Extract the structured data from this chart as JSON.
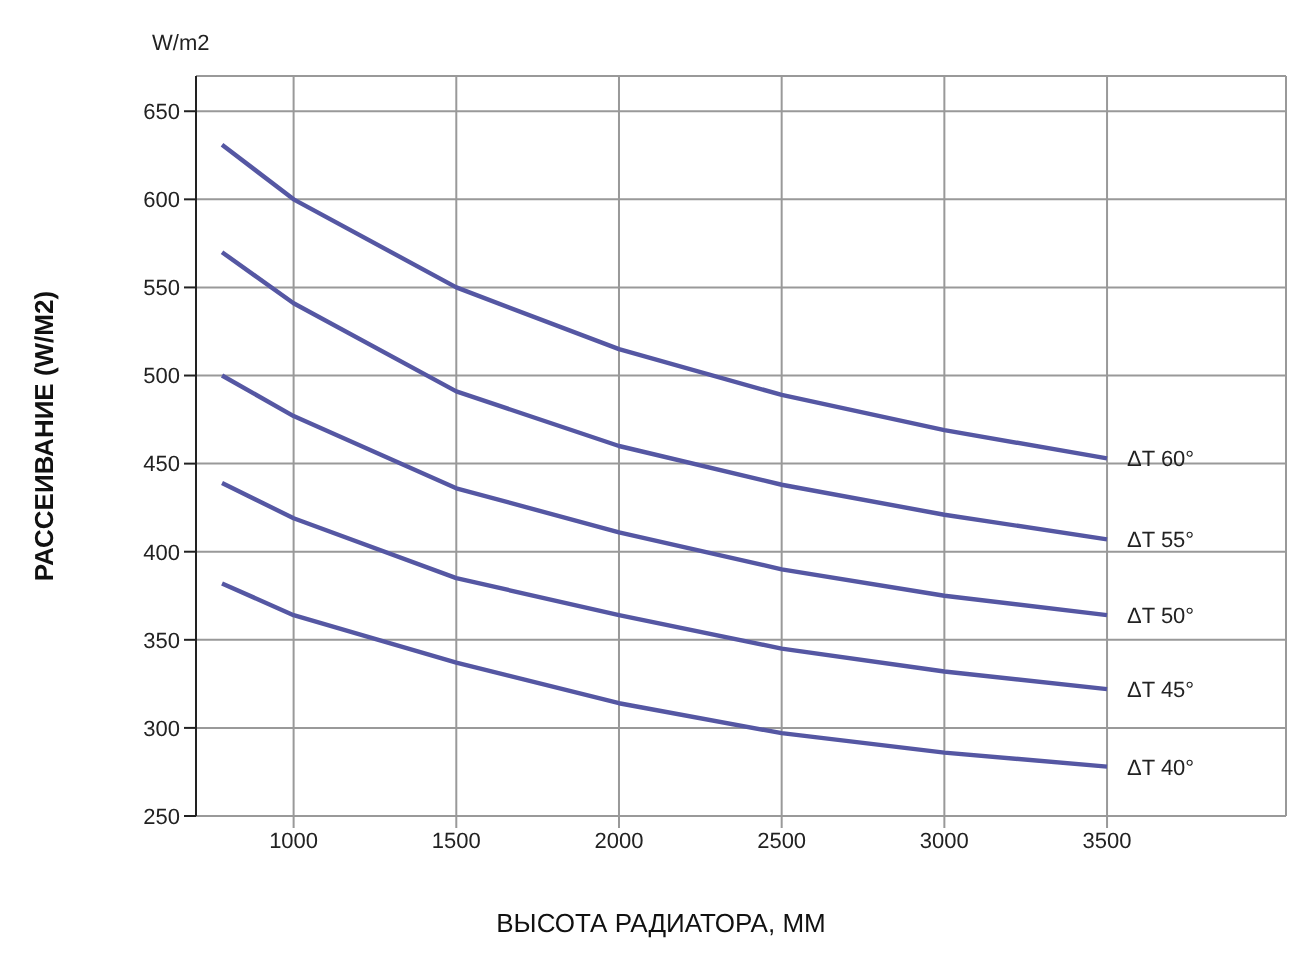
{
  "chart_data": {
    "type": "line",
    "xlabel": "ВЫСОТА РАДИАТОРА, ММ",
    "ylabel": "РАССЕИВАНИЕ (W/M2)",
    "annotations": [
      "W/m2"
    ],
    "x": [
      780,
      1000,
      1500,
      2000,
      2500,
      3000,
      3500
    ],
    "xlim": [
      700,
      4050
    ],
    "xticks": [
      1000,
      1500,
      2000,
      2500,
      3000,
      3500
    ],
    "ylim": [
      250,
      670
    ],
    "yticks": [
      250,
      300,
      350,
      400,
      450,
      500,
      550,
      600,
      650
    ],
    "grid": true,
    "marker": "none",
    "line_style": "solid",
    "series": [
      {
        "name": "ΔT 60°",
        "color": "#5557a3",
        "values": [
          631,
          600,
          550,
          515,
          489,
          469,
          453
        ]
      },
      {
        "name": "ΔT 55°",
        "color": "#5557a3",
        "values": [
          570,
          541,
          491,
          460,
          438,
          421,
          407
        ]
      },
      {
        "name": "ΔT 50°",
        "color": "#5557a3",
        "values": [
          500,
          477,
          436,
          411,
          390,
          375,
          364
        ]
      },
      {
        "name": "ΔT 45°",
        "color": "#5557a3",
        "values": [
          439,
          419,
          385,
          364,
          345,
          332,
          322
        ]
      },
      {
        "name": "ΔT 40°",
        "color": "#5557a3",
        "values": [
          382,
          364,
          337,
          314,
          297,
          286,
          278
        ]
      }
    ]
  }
}
